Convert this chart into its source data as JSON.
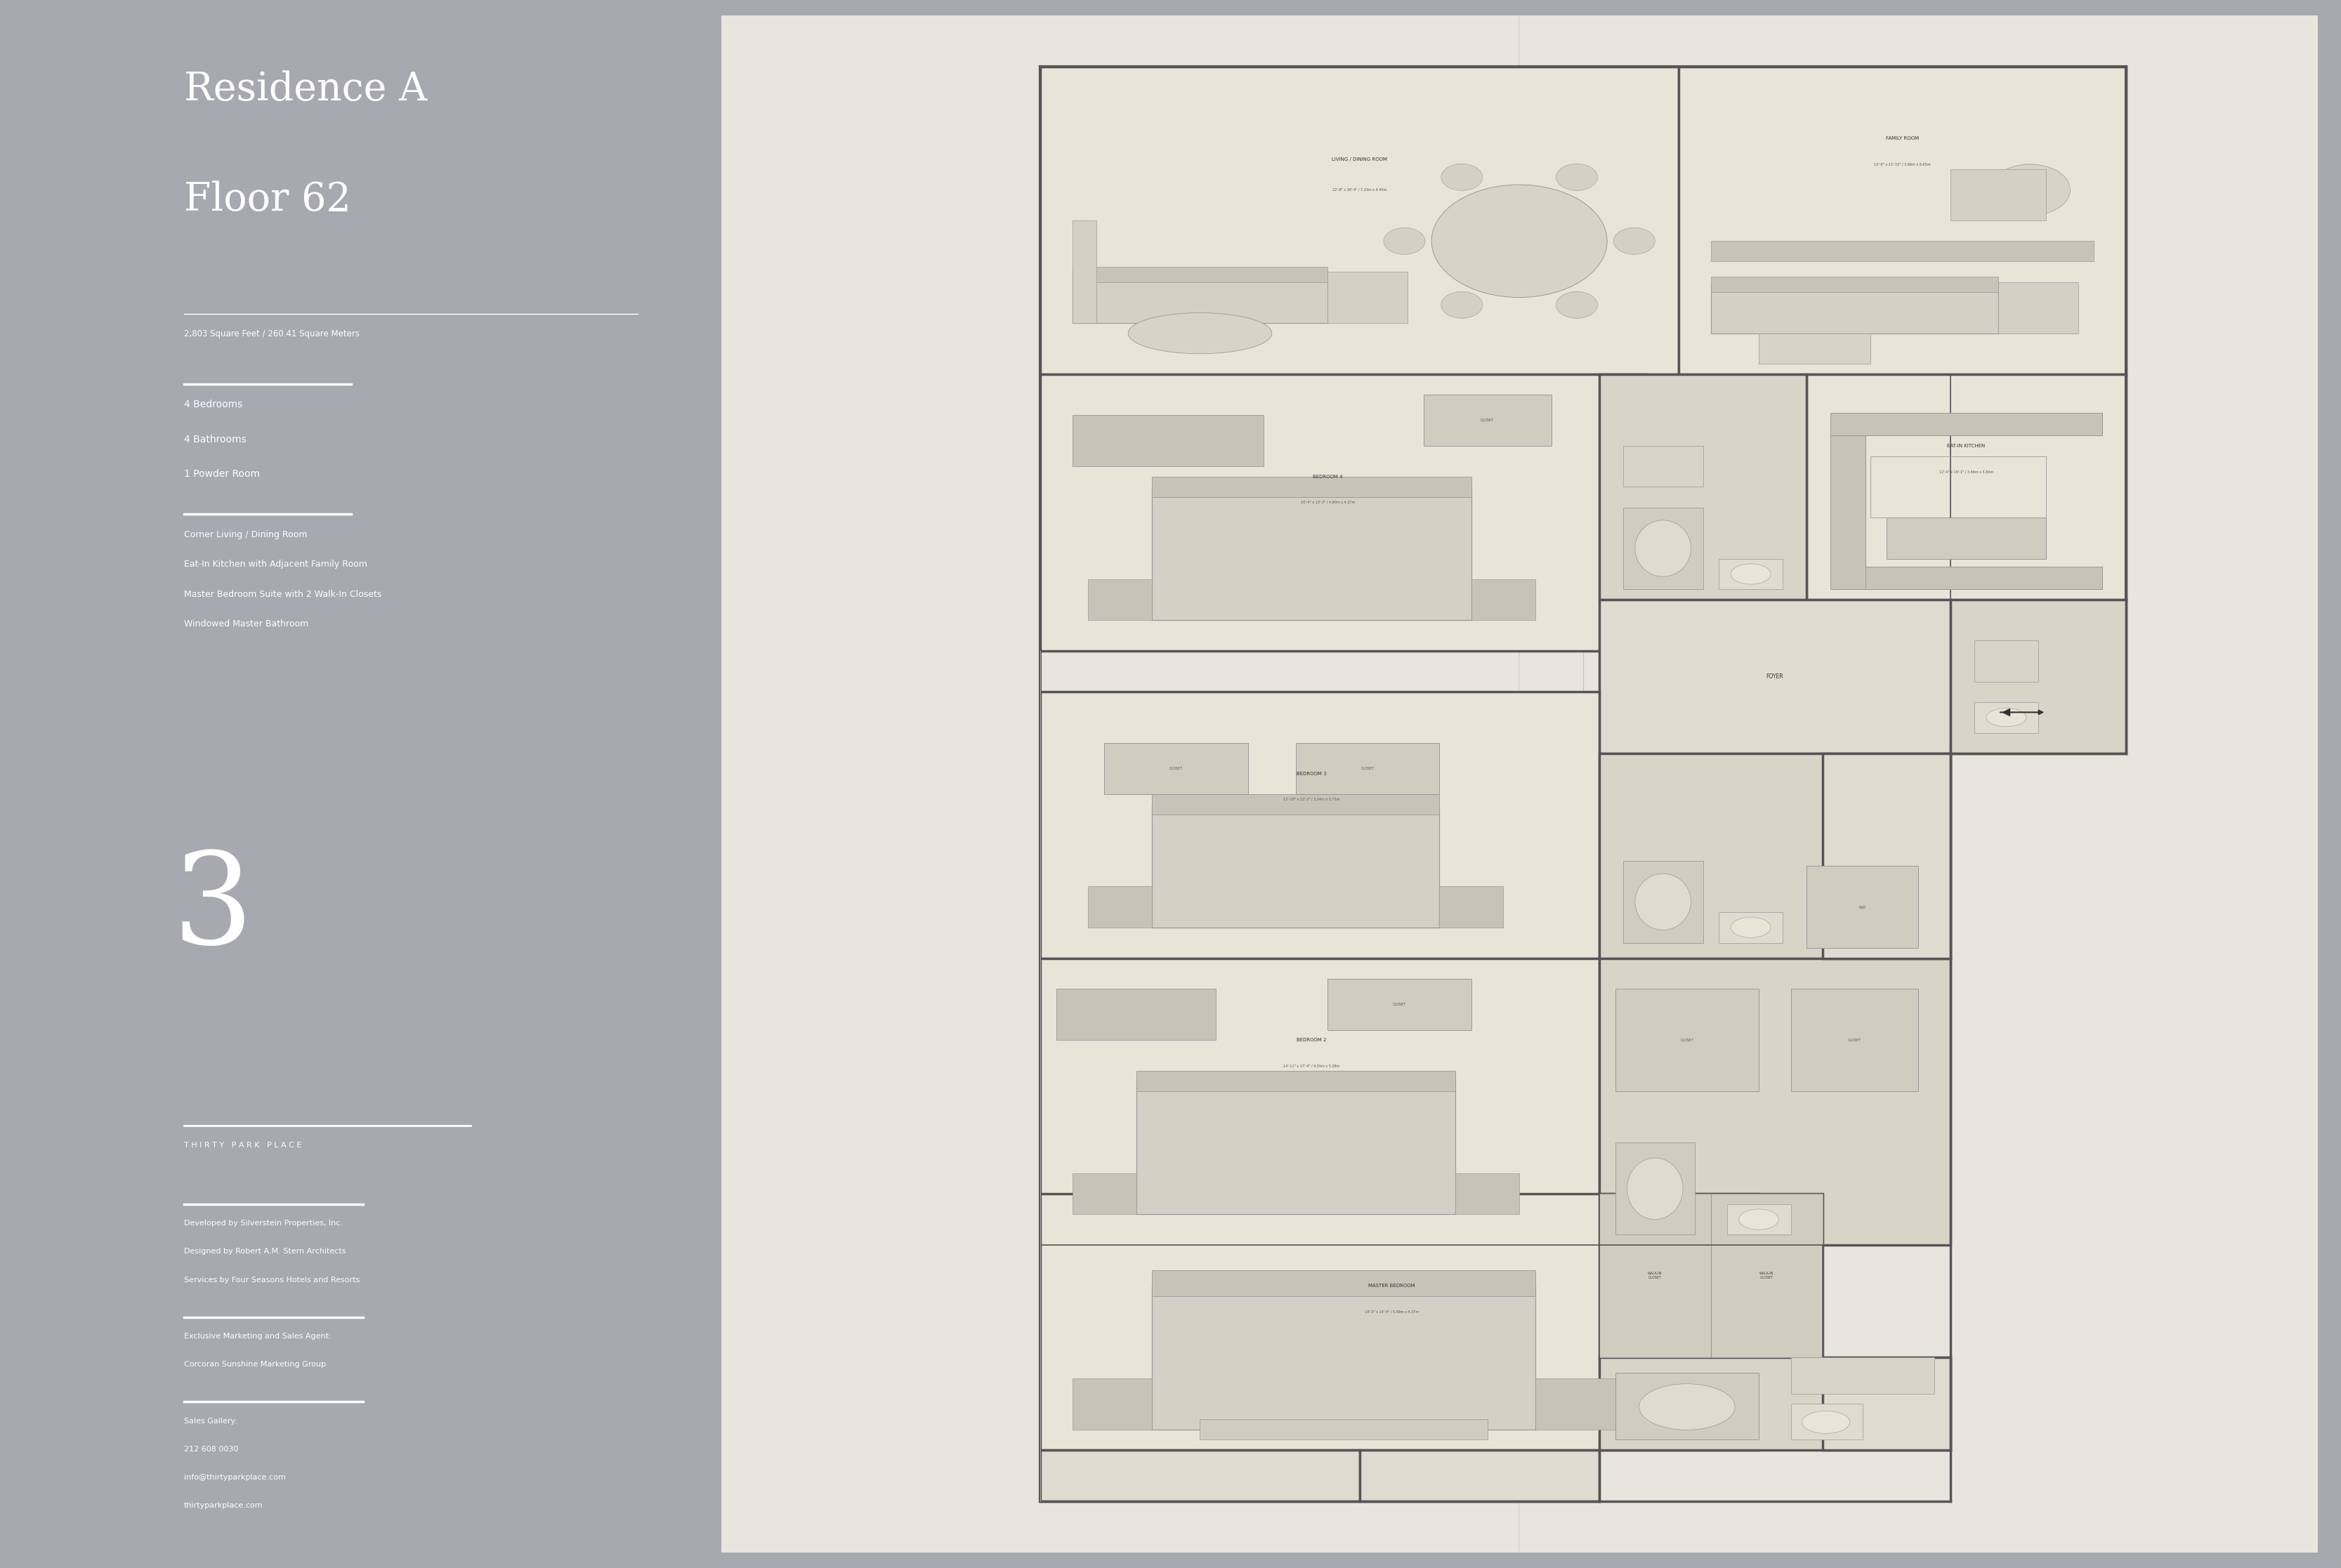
{
  "bg_color": "#a8a8b0",
  "panel_color": "#1a1a1a",
  "paper_color": "#e8e5de",
  "title_line1": "Residence A",
  "title_line2": "Floor 62",
  "sq_feet": "2,803 Square Feet / 260.41 Square Meters",
  "bedrooms": "4 Bedrooms",
  "bathrooms": "4 Bathrooms",
  "powder": "1 Powder Room",
  "feature1": "Corner Living / Dining Room",
  "feature2": "Eat-In Kitchen with Adjacent Family Room",
  "feature3": "Master Bedroom Suite with 2 Walk-In Closets",
  "feature4": "Windowed Master Bathroom",
  "logo_number": "3",
  "logo_text": "T H I R T Y   P A R K   P L A C E",
  "dev_line1": "Developed by Silverstein Properties, Inc.",
  "dev_line2": "Designed by Robert A.M. Stern Architects",
  "dev_line3": "Services by Four Seasons Hotels and Resorts",
  "mkt_line1": "Exclusive Marketing and Sales Agent:",
  "mkt_line2": "Corcoran Sunshine Marketing Group",
  "sales_title": "Sales Gallery:",
  "phone": "212 608 0030",
  "email": "info@thirtyparkplace.com",
  "website": "thirtyparkplace.com",
  "wall_color": "#999999",
  "wall_thick_color": "#555555",
  "room_fill": "#e8e4d8",
  "bath_fill": "#d8d4c8",
  "corridor_fill": "#e0dbd0"
}
